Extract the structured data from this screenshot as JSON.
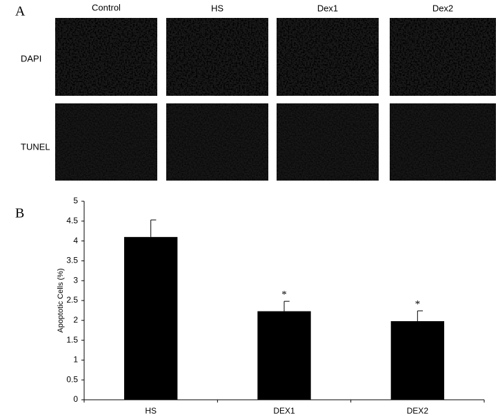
{
  "panel_a": {
    "label": "A",
    "columns": [
      "Control",
      "HS",
      "Dex1",
      "Dex2"
    ],
    "rows": [
      "DAPI",
      "TUNEL"
    ]
  },
  "chart_data": {
    "type": "bar",
    "panel_label": "B",
    "y_label": "Apoptotic Cells (%)",
    "categories": [
      "HS",
      "DEX1",
      "DEX2"
    ],
    "values": [
      4.1,
      2.23,
      1.98
    ],
    "errors": [
      0.43,
      0.25,
      0.26
    ],
    "color": "#000000",
    "ylim": [
      0,
      5
    ],
    "yticks": [
      0,
      0.5,
      1,
      1.5,
      2,
      2.5,
      3,
      3.5,
      4,
      4.5,
      5
    ],
    "annotations": [
      {
        "x": "DEX1",
        "text": "*"
      },
      {
        "x": "DEX2",
        "text": "*"
      }
    ]
  }
}
